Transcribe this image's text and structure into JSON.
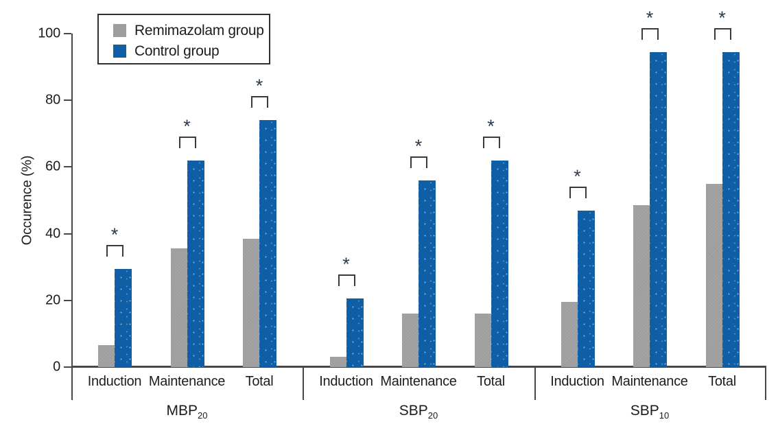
{
  "chart_data": {
    "type": "bar",
    "title": "",
    "ylabel": "Occurence (%)",
    "xlabel": "",
    "ylim": [
      0,
      100
    ],
    "yticks": [
      0,
      20,
      40,
      60,
      80,
      100
    ],
    "grid": false,
    "legend_position": "top-left",
    "legend": [
      {
        "label": "Remimazolam group",
        "color": "#9d9d9d"
      },
      {
        "label": "Control group",
        "color": "#0f5fa6"
      }
    ],
    "sig_marker": "*",
    "categories": [
      "Induction",
      "Maintenance",
      "Total"
    ],
    "groups": [
      {
        "label": "MBP",
        "subscript": "20",
        "categories": [
          "Induction",
          "Maintenance",
          "Total"
        ],
        "series": {
          "remimazolam": [
            6.5,
            35.5,
            38.5
          ],
          "control": [
            29.5,
            62,
            74
          ]
        },
        "significant": [
          true,
          true,
          true
        ]
      },
      {
        "label": "SBP",
        "subscript": "20",
        "categories": [
          "Induction",
          "Maintenance",
          "Total"
        ],
        "series": {
          "remimazolam": [
            3,
            16,
            16
          ],
          "control": [
            20.5,
            56,
            62
          ]
        },
        "significant": [
          true,
          true,
          true
        ]
      },
      {
        "label": "SBP",
        "subscript": "10",
        "categories": [
          "Induction",
          "Maintenance",
          "Total"
        ],
        "series": {
          "remimazolam": [
            19.5,
            48.5,
            55
          ],
          "control": [
            47,
            94.5,
            94.5
          ]
        },
        "significant": [
          true,
          true,
          true
        ]
      }
    ],
    "colors": {
      "axis": "#474747",
      "significance": "#2b3a4a",
      "text": "#1c1c1c"
    }
  }
}
